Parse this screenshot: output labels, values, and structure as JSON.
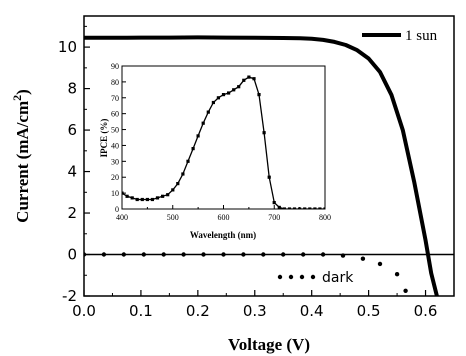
{
  "chart_data": [
    {
      "type": "line",
      "xlabel": "Voltage (V)",
      "ylabel_main": "Current (mA/cm",
      "ylabel_sup": "2",
      "ylabel_close": ")",
      "xlim": [
        0.0,
        0.65
      ],
      "ylim": [
        -2,
        11.5
      ],
      "xticks": [
        0.0,
        0.1,
        0.2,
        0.3,
        0.4,
        0.5,
        0.6
      ],
      "xtick_labels": [
        "0.0",
        "0.1",
        "0.2",
        "0.3",
        "0.4",
        "0.5",
        "0.6"
      ],
      "yticks": [
        -2,
        0,
        2,
        4,
        6,
        8,
        10
      ],
      "ytick_labels": [
        "-2",
        "0",
        "2",
        "4",
        "6",
        "8",
        "10"
      ],
      "reference_line_y": 0,
      "series": [
        {
          "name": "1 sun",
          "style": "solid",
          "color": "#000000",
          "x": [
            0.0,
            0.05,
            0.1,
            0.15,
            0.2,
            0.25,
            0.3,
            0.35,
            0.38,
            0.4,
            0.42,
            0.44,
            0.46,
            0.48,
            0.5,
            0.52,
            0.54,
            0.56,
            0.58,
            0.6,
            0.61,
            0.62
          ],
          "y": [
            10.45,
            10.45,
            10.46,
            10.46,
            10.47,
            10.46,
            10.45,
            10.44,
            10.43,
            10.4,
            10.35,
            10.25,
            10.1,
            9.85,
            9.45,
            8.8,
            7.7,
            6.0,
            3.5,
            0.7,
            -0.9,
            -2.0
          ]
        },
        {
          "name": "dark",
          "style": "dotted",
          "color": "#000000",
          "x": [
            0.0,
            0.035,
            0.07,
            0.105,
            0.14,
            0.175,
            0.21,
            0.245,
            0.28,
            0.315,
            0.35,
            0.385,
            0.42,
            0.455,
            0.49,
            0.52,
            0.55,
            0.565
          ],
          "y": [
            0,
            0,
            0,
            0,
            0,
            0,
            0,
            0,
            0,
            0,
            0,
            0,
            0,
            -0.05,
            -0.2,
            -0.45,
            -0.95,
            -1.75
          ]
        }
      ],
      "legend": {
        "position": "top-right"
      },
      "annotations": [
        {
          "text": "dark"
        }
      ]
    },
    {
      "type": "line",
      "xlabel": "Wavelength (nm)",
      "ylabel": "IPCE (%)",
      "xlim": [
        400,
        800
      ],
      "ylim": [
        0,
        90
      ],
      "xticks": [
        400,
        500,
        600,
        700,
        800
      ],
      "xtick_labels": [
        "400",
        "500",
        "600",
        "700",
        "800"
      ],
      "yticks": [
        0,
        10,
        20,
        30,
        40,
        50,
        60,
        70,
        80,
        90
      ],
      "ytick_labels": [
        "0",
        "10",
        "20",
        "30",
        "40",
        "50",
        "60",
        "70",
        "80",
        "90"
      ],
      "series": [
        {
          "name": "",
          "style": "solid-with-markers",
          "color": "#000000",
          "x": [
            400,
            410,
            420,
            430,
            440,
            450,
            460,
            470,
            480,
            490,
            500,
            510,
            520,
            530,
            540,
            550,
            560,
            570,
            580,
            590,
            600,
            610,
            620,
            630,
            640,
            650,
            660,
            670,
            680,
            690,
            700,
            710,
            720,
            730,
            740,
            750,
            760,
            770,
            780,
            790,
            800
          ],
          "y": [
            10,
            8,
            7,
            6,
            6,
            6,
            6,
            7,
            8,
            9,
            12,
            16,
            22,
            30,
            38,
            46,
            54,
            61,
            67,
            70,
            72,
            73,
            75,
            77,
            81,
            83,
            82,
            72,
            48,
            20,
            4,
            1,
            0,
            0,
            0,
            0,
            0,
            0,
            0,
            0,
            0
          ]
        }
      ]
    }
  ]
}
